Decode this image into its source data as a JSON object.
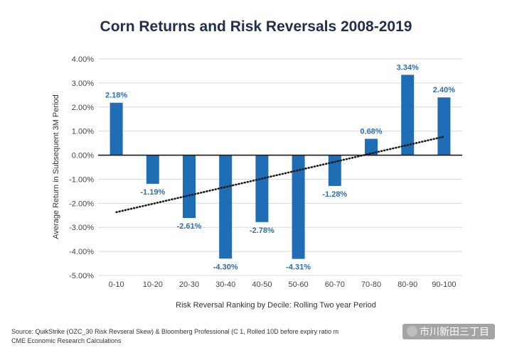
{
  "chart_data": {
    "type": "bar",
    "title": "Corn Returns and Risk Reversals 2008-2019",
    "xlabel": "Risk Reversal Ranking by Decile: Rolling Two year Period",
    "ylabel": "Average Return in Subsequent 3M Period",
    "categories": [
      "0-10",
      "10-20",
      "20-30",
      "30-40",
      "40-50",
      "50-60",
      "60-70",
      "70-80",
      "80-90",
      "90-100"
    ],
    "values": [
      2.18,
      -1.19,
      -2.61,
      -4.3,
      -2.78,
      -4.31,
      -1.28,
      0.68,
      3.34,
      2.4
    ],
    "value_labels": [
      "2.18%",
      "-1.19%",
      "-2.61%",
      "-4.30%",
      "-2.78%",
      "-4.31%",
      "-1.28%",
      "0.68%",
      "3.34%",
      "2.40%"
    ],
    "ylim": [
      -5,
      4
    ],
    "y_ticks": [
      4,
      3,
      2,
      1,
      0,
      -1,
      -2,
      -3,
      -4,
      -5
    ],
    "y_tick_labels": [
      "4.00%",
      "3.00%",
      "2.00%",
      "1.00%",
      "0.00%",
      "-1.00%",
      "-2.00%",
      "-3.00%",
      "-4.00%",
      "-5.00%"
    ],
    "trendline": {
      "type": "linear",
      "style": "dotted",
      "start": -2.37,
      "end": 0.77
    },
    "grid": true,
    "legend": "none",
    "colors": {
      "bar": "#1f6db5",
      "trend": "#1a1a1a",
      "grid": "#d9d9d9",
      "zero_line": "#1a1a1a",
      "label": "#2f6fa8",
      "title": "#1f2f4d"
    }
  },
  "footnote": {
    "line1": "Source: QuikStrike (OZC_30 Risk Revseral Skew) & Bloomberg Professional (C 1, Rolled 10D before expiry ratio m",
    "line2": "CME Economic Research Calculations"
  },
  "watermark": {
    "text": "市川新田三丁目"
  }
}
